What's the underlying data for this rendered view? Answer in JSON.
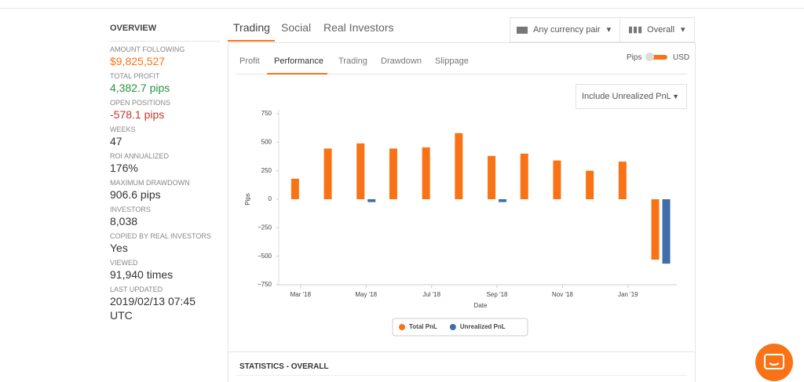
{
  "sidebar": {
    "title": "OVERVIEW",
    "items": [
      {
        "label": "AMOUNT FOLLOWING",
        "value": "$9,825,527"
      },
      {
        "label": "TOTAL PROFIT",
        "value": "4,382.7 pips"
      },
      {
        "label": "OPEN POSITIONS",
        "value": "-578.1 pips"
      },
      {
        "label": "WEEKS",
        "value": "47"
      },
      {
        "label": "ROI ANNUALIZED",
        "value": "176%"
      },
      {
        "label": "MAXIMUM DRAWDOWN",
        "value": "906.6 pips"
      },
      {
        "label": "INVESTORS",
        "value": "8,038"
      },
      {
        "label": "COPIED BY REAL INVESTORS",
        "value": "Yes"
      },
      {
        "label": "VIEWED",
        "value": "91,940 times"
      },
      {
        "label": "LAST UPDATED",
        "value": "2019/02/13 07:45 UTC"
      }
    ]
  },
  "tabs": [
    "Trading",
    "Social",
    "Real Investors"
  ],
  "filters": [
    "Any currency pair",
    "Overall"
  ],
  "subtabs": [
    "Profit",
    "Performance",
    "Trading",
    "Drawdown",
    "Slippage"
  ],
  "toggle": {
    "left": "Pips",
    "right": "USD"
  },
  "pnl_dropdown": "Include Unrealized PnL",
  "statistics_title": "STATISTICS - OVERALL",
  "chart_data": {
    "type": "bar",
    "x_label": "Date",
    "y_label": "Pips",
    "categories": [
      "Mar '18",
      null,
      "May '18",
      null,
      "Jul '18",
      null,
      "Sep '18",
      null,
      "Nov '18",
      null,
      "Jan '19",
      null
    ],
    "series": [
      {
        "name": "Total PnL",
        "color": "#f97316",
        "values": [
          180,
          445,
          490,
          445,
          455,
          580,
          380,
          400,
          340,
          250,
          330,
          -530
        ]
      },
      {
        "name": "Unrealized PnL",
        "color": "#3f6ea8",
        "values": [
          0,
          0,
          -25,
          0,
          0,
          0,
          -25,
          0,
          0,
          0,
          0,
          -565
        ]
      }
    ],
    "ylim": [
      -750,
      750
    ],
    "yticks": [
      750,
      500,
      250,
      0,
      {
        "value": -250,
        "label": "−250"
      },
      {
        "value": -500,
        "label": "−500"
      },
      {
        "value": -750,
        "label": "−750"
      }
    ]
  }
}
